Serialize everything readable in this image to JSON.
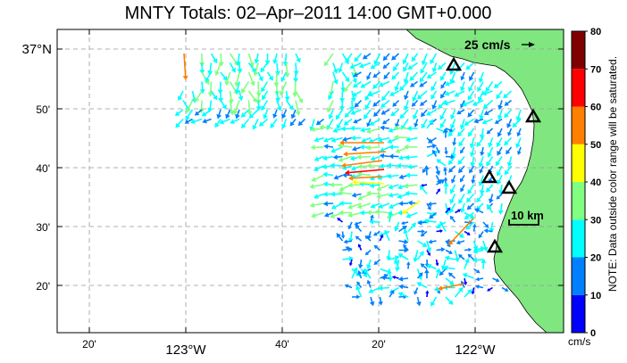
{
  "title": "MNTY Totals: 02–Apr–2011 14:00 GMT+0.000",
  "axes": {
    "x_ticks": [
      {
        "label": "20'",
        "big": false
      },
      {
        "label": "123°W",
        "big": true
      },
      {
        "label": "40'",
        "big": false
      },
      {
        "label": "20'",
        "big": false
      },
      {
        "label": "122°W",
        "big": true
      }
    ],
    "y_ticks": [
      {
        "label": "37°N",
        "big": true
      },
      {
        "label": "50'",
        "big": false
      },
      {
        "label": "40'",
        "big": false
      },
      {
        "label": "30'",
        "big": false
      },
      {
        "label": "20'",
        "big": false
      }
    ]
  },
  "scale": {
    "speed_label": "25 cm/s",
    "distance_label": "10 km"
  },
  "colorbar": {
    "unit": "cm/s",
    "note": "NOTE: Data outside color range will be saturated.",
    "ticks": [
      "0",
      "10",
      "20",
      "30",
      "40",
      "50",
      "60",
      "70",
      "80"
    ],
    "colors": [
      "#0000ff",
      "#0080ff",
      "#00ffff",
      "#80ff80",
      "#ffff00",
      "#ff8000",
      "#ff0000",
      "#800000"
    ]
  },
  "colors": {
    "land": "#80e680",
    "grid": "#999999"
  }
}
